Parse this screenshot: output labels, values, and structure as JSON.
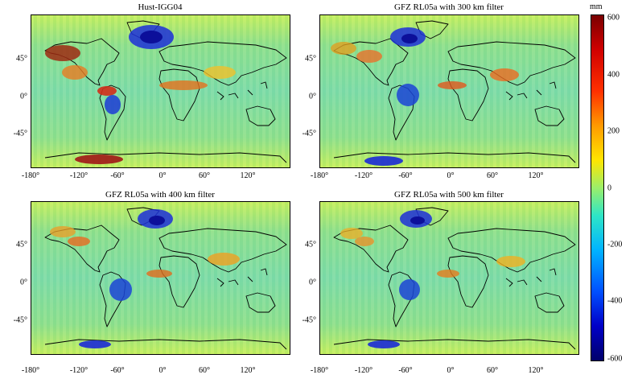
{
  "panels": [
    {
      "title": "Hust-IGG04"
    },
    {
      "title": "GFZ RL05a with 300 km filter"
    },
    {
      "title": "GFZ RL05a with 400 km filter"
    },
    {
      "title": "GFZ RL05a with 500 km filter"
    }
  ],
  "x_ticks": [
    "-180°",
    "-120°",
    "-60°",
    "0°",
    "60°",
    "120°"
  ],
  "y_ticks": [
    "45°",
    "0°",
    "-45°"
  ],
  "colorbar": {
    "unit": "mm",
    "labels": [
      "600",
      "400",
      "200",
      "0",
      "-200",
      "-400",
      "-600"
    ],
    "range": [
      -600,
      600
    ]
  },
  "colors": {
    "land_outline": "#000000",
    "background_anomaly": "#8fe08a"
  }
}
